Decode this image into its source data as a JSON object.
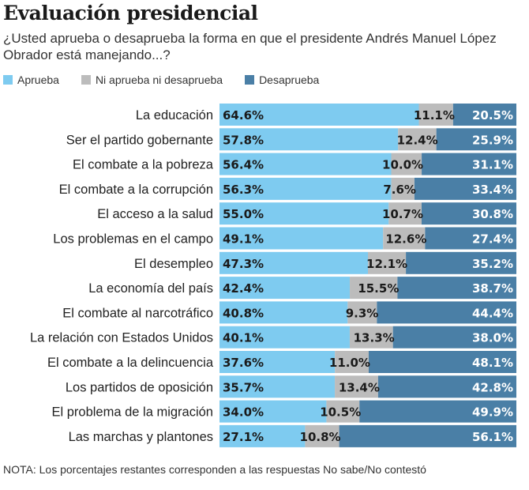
{
  "title": "Evaluación presidencial",
  "subtitle": "¿Usted aprueba o desaprueba la forma en que el presidente Andrés Manuel López Obrador está manejando...?",
  "note": "NOTA: Los porcentajes restantes corresponden a las respuestas No sabe/No contestó",
  "chart_data": {
    "type": "bar",
    "orientation": "horizontal-stacked",
    "legend_placement": "top-left",
    "categories": [
      "La educación",
      "Ser el partido gobernante",
      "El combate a la pobreza",
      "El combate a la corrupción",
      "El acceso a la salud",
      "Los problemas en el campo",
      "El desempleo",
      "La economía del país",
      "El combate al narcotráfico",
      "La relación con Estados Unidos",
      "El combate a la delincuencia",
      "Los partidos de oposición",
      "El problema de la migración",
      "Las marchas y plantones"
    ],
    "series": [
      {
        "name": "Aprueba",
        "color": "#7ecbf0",
        "values": [
          64.6,
          57.8,
          56.4,
          56.3,
          55.0,
          49.1,
          47.3,
          42.4,
          40.8,
          40.1,
          37.6,
          35.7,
          34.0,
          27.1
        ]
      },
      {
        "name": "Ni aprueba ni desaprueba",
        "color": "#bcbcbc",
        "values": [
          11.1,
          12.4,
          10.0,
          7.6,
          10.7,
          12.6,
          12.1,
          15.5,
          9.3,
          13.3,
          11.0,
          13.4,
          10.5,
          10.8
        ]
      },
      {
        "name": "Desaprueba",
        "color": "#4a7fa6",
        "values": [
          20.5,
          25.9,
          31.1,
          33.4,
          30.8,
          27.4,
          35.2,
          38.7,
          44.4,
          38.0,
          48.1,
          42.8,
          49.9,
          56.1
        ]
      }
    ]
  }
}
